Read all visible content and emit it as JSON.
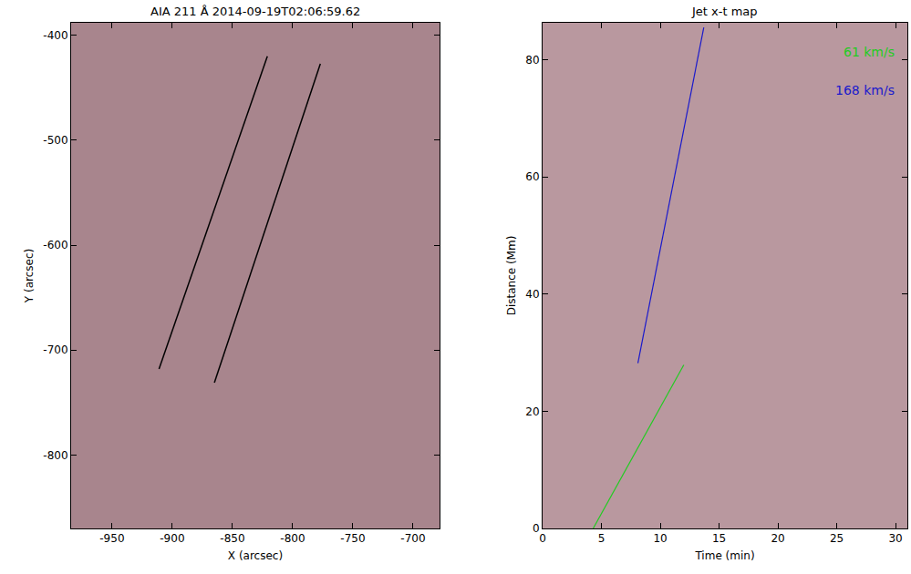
{
  "chart_data": [
    {
      "type": "line",
      "title": "AIA 211 Å 2014-09-19T02:06:59.62",
      "x_label": "X (arcsec)",
      "y_label": "Y (arcsec)",
      "xlim": [
        -984,
        -678
      ],
      "ylim": [
        -870,
        -388
      ],
      "xticks": [
        -950,
        -900,
        -850,
        -800,
        -750,
        -700
      ],
      "yticks": [
        -800,
        -700,
        -600,
        -500,
        -400
      ],
      "series": [
        {
          "color": "#000000",
          "x": [
            -911,
            -821
          ],
          "values": [
            -718,
            -420
          ]
        },
        {
          "color": "#000000",
          "x": [
            -865,
            -777
          ],
          "values": [
            -731,
            -427
          ]
        }
      ]
    },
    {
      "type": "line",
      "title": "Jet x-t map",
      "x_label": "Time (min)",
      "y_label": "Distance (Mm)",
      "xlim": [
        0,
        31
      ],
      "ylim": [
        0,
        86.3
      ],
      "xticks": [
        0,
        5,
        10,
        15,
        20,
        25,
        30
      ],
      "yticks": [
        0,
        20,
        40,
        60,
        80
      ],
      "series": [
        {
          "name": "61 km/s",
          "color": "#22cc22",
          "x": [
            4.3,
            12.0
          ],
          "values": [
            0,
            27.9
          ]
        },
        {
          "name": "168 km/s",
          "color": "#1a1acc",
          "x": [
            8.1,
            13.7
          ],
          "values": [
            28.2,
            85.5
          ]
        }
      ]
    }
  ]
}
